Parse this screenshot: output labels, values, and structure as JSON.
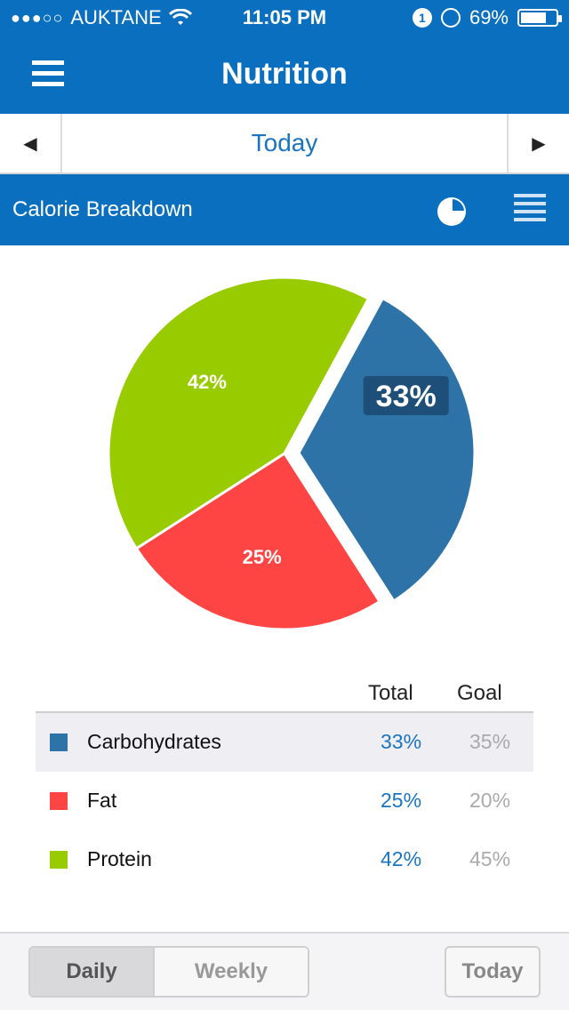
{
  "status": {
    "carrier": "AUKTANE",
    "time": "11:05 PM",
    "notification_count": "1",
    "battery": "69%"
  },
  "header": {
    "title": "Nutrition"
  },
  "date_nav": {
    "label": "Today",
    "prev": "◀",
    "next": "▶"
  },
  "section": {
    "title": "Calorie Breakdown"
  },
  "chart_data": {
    "type": "pie",
    "slices": [
      {
        "name": "Carbohydrates",
        "value": 33,
        "label": "33%",
        "color": "#2e73a8"
      },
      {
        "name": "Fat",
        "value": 25,
        "label": "25%",
        "color": "#ff4444"
      },
      {
        "name": "Protein",
        "value": 42,
        "label": "42%",
        "color": "#99cc00"
      }
    ]
  },
  "table": {
    "headers": {
      "total": "Total",
      "goal": "Goal"
    },
    "rows": [
      {
        "name": "Carbohydrates",
        "total": "33%",
        "goal": "35%",
        "color": "#2e73a8"
      },
      {
        "name": "Fat",
        "total": "25%",
        "goal": "20%",
        "color": "#ff4444"
      },
      {
        "name": "Protein",
        "total": "42%",
        "goal": "45%",
        "color": "#99cc00"
      }
    ]
  },
  "footer": {
    "daily": "Daily",
    "weekly": "Weekly",
    "today": "Today"
  }
}
